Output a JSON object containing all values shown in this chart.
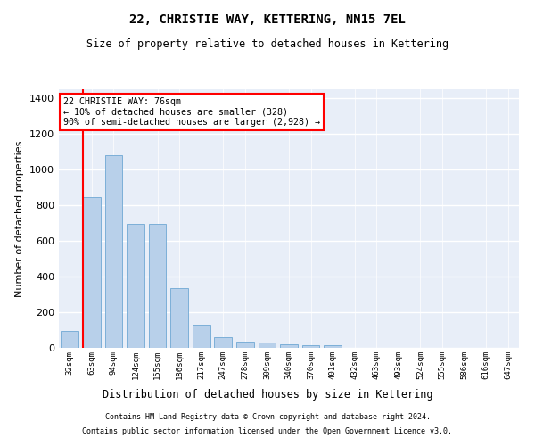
{
  "title": "22, CHRISTIE WAY, KETTERING, NN15 7EL",
  "subtitle": "Size of property relative to detached houses in Kettering",
  "xlabel": "Distribution of detached houses by size in Kettering",
  "ylabel": "Number of detached properties",
  "bar_color": "#b8d0ea",
  "bar_edge_color": "#6fa8d4",
  "background_color": "#e8eef8",
  "grid_color": "#ffffff",
  "bins": [
    "32sqm",
    "63sqm",
    "94sqm",
    "124sqm",
    "155sqm",
    "186sqm",
    "217sqm",
    "247sqm",
    "278sqm",
    "309sqm",
    "340sqm",
    "370sqm",
    "401sqm",
    "432sqm",
    "463sqm",
    "493sqm",
    "524sqm",
    "555sqm",
    "586sqm",
    "616sqm",
    "647sqm"
  ],
  "values": [
    95,
    845,
    1080,
    695,
    695,
    335,
    130,
    60,
    35,
    28,
    18,
    13,
    14,
    0,
    0,
    0,
    0,
    0,
    0,
    0,
    0
  ],
  "property_label": "22 CHRISTIE WAY: 76sqm",
  "pct_smaller": "10% of detached houses are smaller (328)",
  "pct_larger": "90% of semi-detached houses are larger (2,928)",
  "ylim": [
    0,
    1450
  ],
  "yticks": [
    0,
    200,
    400,
    600,
    800,
    1000,
    1200,
    1400
  ],
  "footnote1": "Contains HM Land Registry data © Crown copyright and database right 2024.",
  "footnote2": "Contains public sector information licensed under the Open Government Licence v3.0."
}
